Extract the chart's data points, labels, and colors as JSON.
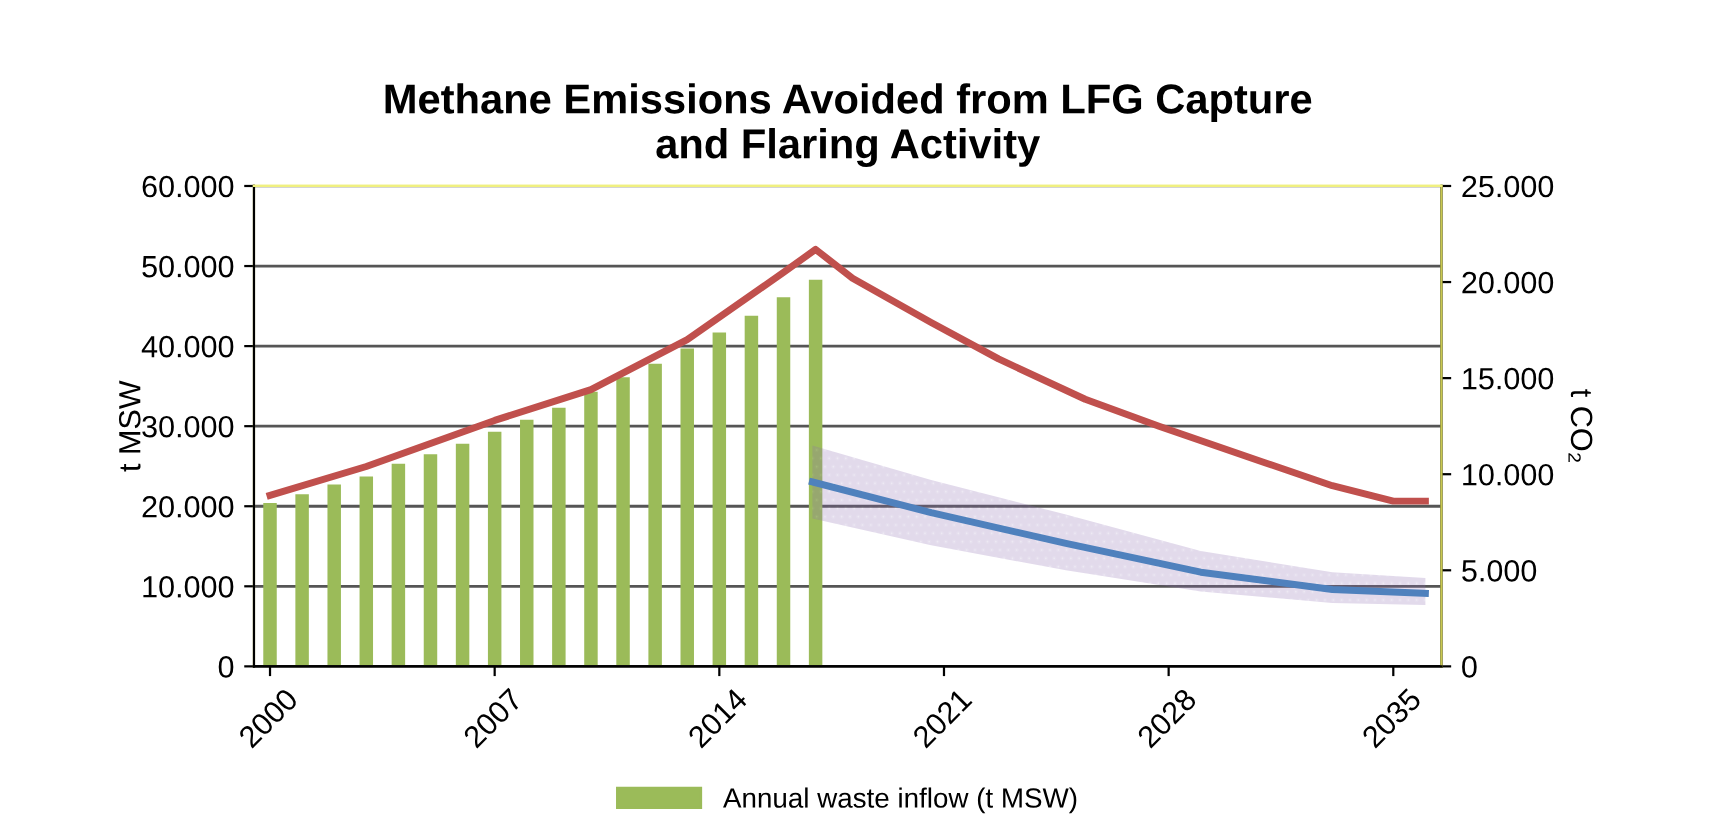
{
  "chart_data": {
    "type": "bar",
    "title": "Methane Emissions Avoided from LFG Capture\nand Flaring Activity",
    "ylabel": "t MSW",
    "y2label": "t CO₂",
    "x": [
      2000,
      2001,
      2002,
      2003,
      2004,
      2005,
      2006,
      2007,
      2008,
      2009,
      2010,
      2011,
      2012,
      2013,
      2014,
      2015,
      2016,
      2017
    ],
    "series": [
      {
        "name": "Annual waste inflow (t MSW)",
        "color": "#9bbb59",
        "values": [
          20400,
          21500,
          22700,
          23700,
          25300,
          26500,
          27800,
          29300,
          30800,
          32300,
          34300,
          36100,
          37800,
          39700,
          41700,
          43800,
          46100,
          48300
        ]
      },
      {
        "type": "line",
        "axis": "y2",
        "color": "#c0504d",
        "x": [
          2000,
          2003,
          2007,
          2010,
          2013,
          2016,
          2017,
          2018.15,
          2020.6,
          2022.7,
          2025.4,
          2027.7,
          2031,
          2033.1,
          2035,
          2036
        ],
        "values": [
          8900,
          10400,
          12800,
          14400,
          17000,
          20500,
          21700,
          20200,
          17900,
          16000,
          13900,
          12500,
          10600,
          9400,
          8600,
          8600
        ]
      },
      {
        "type": "line",
        "axis": "y2",
        "color": "#4f81bd",
        "x": [
          2016.9,
          2020.6,
          2024.8,
          2029,
          2033.1,
          2036
        ],
        "values": [
          9600,
          8000,
          6400,
          4900,
          4000,
          3800
        ],
        "lower": [
          7700,
          6300,
          5000,
          3900,
          3300,
          3200
        ],
        "upper": [
          11500,
          9700,
          7900,
          6000,
          4900,
          4600
        ]
      }
    ],
    "xlim": [
      1999.5,
      2036.5
    ],
    "xticks": [
      2000,
      2007,
      2014,
      2021,
      2028,
      2035
    ],
    "ylim": [
      0,
      60000
    ],
    "yticks": [
      {
        "value": 0,
        "label": "0"
      },
      {
        "value": 10000,
        "label": "10.000"
      },
      {
        "value": 20000,
        "label": "20.000"
      },
      {
        "value": 30000,
        "label": "30.000"
      },
      {
        "value": 40000,
        "label": "40.000"
      },
      {
        "value": 50000,
        "label": "50.000"
      },
      {
        "value": 60000,
        "label": "60.000"
      }
    ],
    "y2lim": [
      0,
      25000
    ],
    "y2ticks": [
      {
        "value": 0,
        "label": "0"
      },
      {
        "value": 5000,
        "label": "5.000"
      },
      {
        "value": 10000,
        "label": "10.000"
      },
      {
        "value": 15000,
        "label": "15.000"
      },
      {
        "value": 20000,
        "label": "20.000"
      },
      {
        "value": 25000,
        "label": "25.000"
      }
    ],
    "grid": "y",
    "legend": "bottom",
    "line_style": "solid",
    "marker": "none"
  }
}
